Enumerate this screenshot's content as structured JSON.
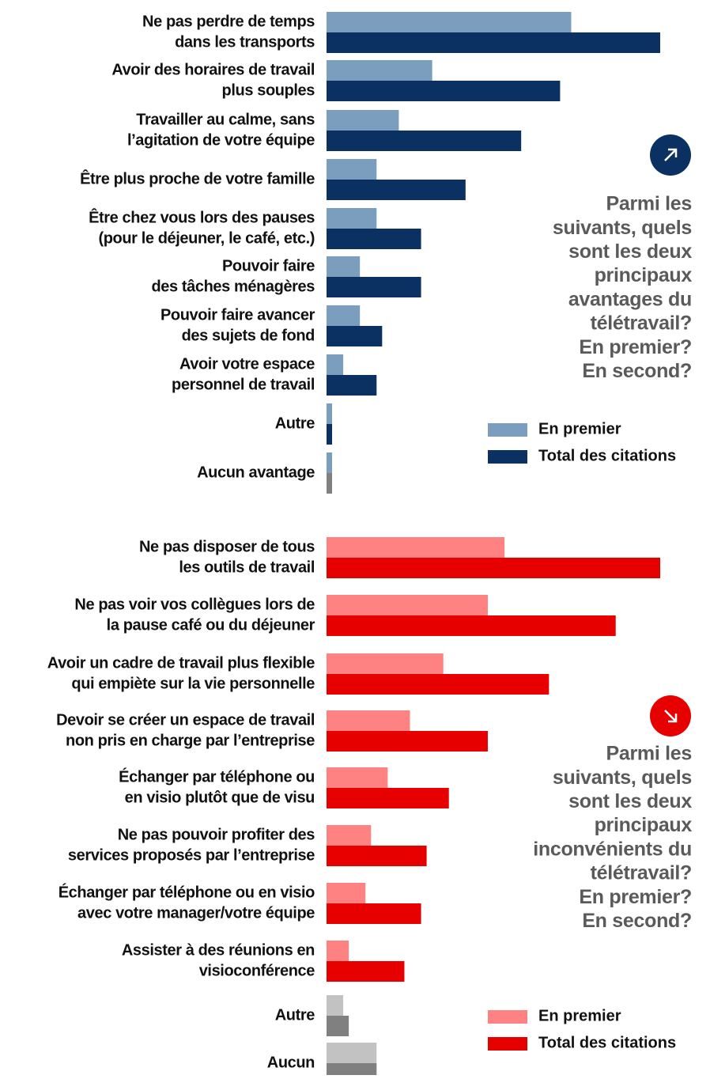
{
  "chart_data": [
    {
      "type": "bar",
      "orientation": "horizontal",
      "title": [
        "Parmi les",
        "suivants, quels",
        "sont les deux",
        "principaux",
        "avantages du",
        "télétravail?",
        "En premier?",
        "En second?"
      ],
      "categories": [
        [
          "Ne pas perdre de temps",
          "dans les transports"
        ],
        [
          "Avoir des horaires de travail",
          "plus souples"
        ],
        [
          "Travailler au calme, sans",
          "l’agitation de votre équipe"
        ],
        [
          "Être plus proche de votre famille"
        ],
        [
          "Être chez vous lors des pauses",
          "(pour le déjeuner, le café, etc.)"
        ],
        [
          "Pouvoir faire",
          "des tâches ménagères"
        ],
        [
          "Pouvoir faire avancer",
          "des sujets de fond"
        ],
        [
          "Avoir votre espace",
          "personnel de travail"
        ],
        [
          "Autre"
        ],
        [
          "Aucun avantage"
        ]
      ],
      "series": [
        {
          "name": "En premier",
          "color": "#7b9dbe",
          "colors": [
            "#7b9dbe",
            "#7b9dbe",
            "#7b9dbe",
            "#7b9dbe",
            "#7b9dbe",
            "#7b9dbe",
            "#7b9dbe",
            "#7b9dbe",
            "#7b9dbe",
            "#7b9dbe"
          ],
          "values": [
            44,
            19,
            13,
            9,
            9,
            6,
            6,
            3,
            1,
            1
          ]
        },
        {
          "name": "Total des citations",
          "color": "#0b3162",
          "colors": [
            "#0b3162",
            "#0b3162",
            "#0b3162",
            "#0b3162",
            "#0b3162",
            "#0b3162",
            "#0b3162",
            "#0b3162",
            "#0b3162",
            "#808080"
          ],
          "values": [
            60,
            42,
            35,
            25,
            17,
            17,
            10,
            9,
            1,
            1
          ]
        }
      ],
      "xlim": [
        0,
        60
      ],
      "icon_color": "#0b3162"
    },
    {
      "type": "bar",
      "orientation": "horizontal",
      "title": [
        "Parmi les",
        "suivants, quels",
        "sont les deux",
        "principaux",
        "inconvénients du",
        "télétravail?",
        "En premier?",
        "En second?"
      ],
      "categories": [
        [
          "Ne pas disposer de tous",
          "les outils de travail"
        ],
        [
          "Ne pas voir vos collègues lors de",
          "la pause café ou du déjeuner"
        ],
        [
          "Avoir un cadre de travail plus flexible",
          "qui empiète sur la vie personnelle"
        ],
        [
          "Devoir se créer un espace de travail",
          "non pris en charge par l’entreprise"
        ],
        [
          "Échanger par téléphone ou",
          "en visio plutôt que de visu"
        ],
        [
          "Ne pas pouvoir profiter des",
          "services proposés par l’entreprise"
        ],
        [
          "Échanger par téléphone ou en visio",
          "avec votre manager/votre équipe"
        ],
        [
          "Assister à des réunions en",
          "visioconférence"
        ],
        [
          "Autre"
        ],
        [
          "Aucun"
        ]
      ],
      "series": [
        {
          "name": "En premier",
          "color": "#ff8282",
          "colors": [
            "#ff8282",
            "#ff8282",
            "#ff8282",
            "#ff8282",
            "#ff8282",
            "#ff8282",
            "#ff8282",
            "#ff8282",
            "#c2c2c2",
            "#c2c2c2"
          ],
          "values": [
            32,
            29,
            21,
            15,
            11,
            8,
            7,
            4,
            3,
            9
          ]
        },
        {
          "name": "Total des citations",
          "color": "#e60000",
          "colors": [
            "#e60000",
            "#e60000",
            "#e60000",
            "#e60000",
            "#e60000",
            "#e60000",
            "#e60000",
            "#e60000",
            "#808080",
            "#808080"
          ],
          "values": [
            60,
            52,
            40,
            29,
            22,
            18,
            17,
            14,
            4,
            9
          ]
        }
      ],
      "xlim": [
        0,
        60
      ],
      "icon_color": "#e60000"
    }
  ]
}
